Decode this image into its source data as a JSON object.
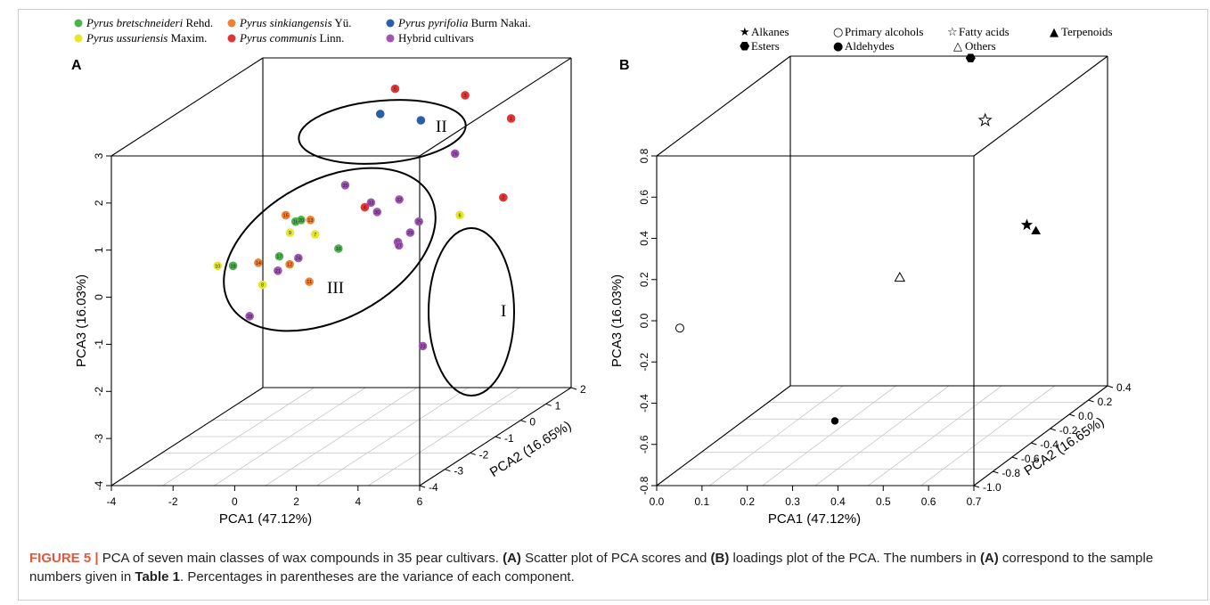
{
  "caption": {
    "figure_label": "FIGURE 5 |",
    "text_1": " PCA of seven main classes of wax compounds in 35 pear cultivars. ",
    "a_ref": "(A)",
    "text_2": " Scatter plot of PCA scores and ",
    "b_ref": "(B)",
    "text_3": " loadings plot of the PCA. The numbers in ",
    "a_ref_2": "(A)",
    "text_4": " correspond to the sample numbers given in ",
    "table_ref": "Table 1",
    "text_5": ". Percentages in parentheses are the variance of each component."
  },
  "chart_data": [
    {
      "panel": "A",
      "type": "scatter",
      "xlabel": "PCA1  (47.12%)",
      "ylabel": "PCA2  (16.65%)",
      "zlabel": "PCA3  (16.03%)",
      "xlim": [
        -4,
        6
      ],
      "ylim": [
        -4,
        2
      ],
      "zlim": [
        -4,
        3
      ],
      "xticks": [
        "-4",
        "-2",
        "0",
        "2",
        "4",
        "6"
      ],
      "yticks": [
        "-4",
        "-3",
        "-2",
        "-1",
        "0",
        "1",
        "2"
      ],
      "zticks": [
        "-4",
        "-3",
        "-2",
        "-1",
        "0",
        "1",
        "2",
        "3"
      ],
      "legend": [
        {
          "italic": "Pyrus bretschneideri",
          "rest": " Rehd.",
          "color": "#4cb24c"
        },
        {
          "italic": "Pyrus sinkiangensis",
          "rest": " Yü.",
          "color": "#f08030"
        },
        {
          "italic": "Pyrus pyrifolia",
          "rest": " Burm Nakai.",
          "color": "#2a5fa8"
        },
        {
          "italic": "Pyrus ussuriensis",
          "rest": " Maxim.",
          "color": "#e6e62a"
        },
        {
          "italic": "Pyrus communis",
          "rest": " Linn.",
          "color": "#e23434"
        },
        {
          "italic": "",
          "rest": "Hybrid cultivars",
          "color": "#a054b4"
        }
      ],
      "group_labels": [
        "I",
        "II",
        "III"
      ],
      "points": [
        {
          "label": "5",
          "group": 4,
          "x": 1.6,
          "y": 0.4,
          "z": 2.9
        },
        {
          "label": "3",
          "group": 4,
          "x": 4.2,
          "y": 0.0,
          "z": 2.9
        },
        {
          "label": "1",
          "group": 4,
          "x": 5.2,
          "y": 0.6,
          "z": 2.2
        },
        {
          "label": "2",
          "group": 4,
          "x": 5.6,
          "y": -0.2,
          "z": 0.8
        },
        {
          "label": "",
          "group": 2,
          "x": 1.2,
          "y": 0.3,
          "z": 2.4
        },
        {
          "label": "",
          "group": 2,
          "x": 2.6,
          "y": 0.2,
          "z": 2.3
        },
        {
          "label": "26",
          "group": 5,
          "x": 4.2,
          "y": -0.4,
          "z": 1.8
        },
        {
          "label": "35",
          "group": 5,
          "x": 0.8,
          "y": -0.6,
          "z": 1.2
        },
        {
          "label": "32",
          "group": 5,
          "x": 2.8,
          "y": -0.9,
          "z": 1.0
        },
        {
          "label": "33",
          "group": 5,
          "x": 1.8,
          "y": -0.8,
          "z": 0.9
        },
        {
          "label": "4",
          "group": 4,
          "x": 1.6,
          "y": -0.8,
          "z": 0.8
        },
        {
          "label": "30",
          "group": 5,
          "x": 2.0,
          "y": -0.8,
          "z": 0.7
        },
        {
          "label": "25",
          "group": 5,
          "x": 3.6,
          "y": -1.1,
          "z": 0.6
        },
        {
          "label": "29",
          "group": 5,
          "x": 3.4,
          "y": -1.2,
          "z": 0.4
        },
        {
          "label": "31",
          "group": 5,
          "x": 3.0,
          "y": -1.2,
          "z": 0.2
        },
        {
          "label": "27",
          "group": 5,
          "x": 3.2,
          "y": -1.4,
          "z": 0.2
        },
        {
          "label": "15",
          "group": 1,
          "x": -0.8,
          "y": -1.0,
          "z": 0.7
        },
        {
          "label": "18",
          "group": 0,
          "x": -0.4,
          "y": -1.1,
          "z": 0.6
        },
        {
          "label": "20",
          "group": 0,
          "x": -0.3,
          "y": -1.0,
          "z": 0.6
        },
        {
          "label": "13",
          "group": 1,
          "x": 0.0,
          "y": -1.0,
          "z": 0.6
        },
        {
          "label": "9",
          "group": 3,
          "x": -0.5,
          "y": -1.2,
          "z": 0.4
        },
        {
          "label": "7",
          "group": 3,
          "x": 0.4,
          "y": -1.3,
          "z": 0.4
        },
        {
          "label": "16",
          "group": 0,
          "x": 1.4,
          "y": -1.6,
          "z": 0.2
        },
        {
          "label": "17",
          "group": 0,
          "x": -0.6,
          "y": -1.5,
          "z": 0.0
        },
        {
          "label": "14",
          "group": 1,
          "x": -1.2,
          "y": -1.6,
          "z": -0.1
        },
        {
          "label": "24",
          "group": 5,
          "x": 0.1,
          "y": -1.6,
          "z": 0.0
        },
        {
          "label": "12",
          "group": 1,
          "x": -0.1,
          "y": -1.7,
          "z": -0.1
        },
        {
          "label": "21",
          "group": 5,
          "x": -0.4,
          "y": -1.8,
          "z": -0.2
        },
        {
          "label": "11",
          "group": 1,
          "x": 0.7,
          "y": -1.9,
          "z": -0.4
        },
        {
          "label": "8",
          "group": 3,
          "x": -0.9,
          "y": -1.8,
          "z": -0.5
        },
        {
          "label": "10",
          "group": 3,
          "x": -2.6,
          "y": -1.5,
          "z": -0.2
        },
        {
          "label": "19",
          "group": 0,
          "x": -2.1,
          "y": -1.5,
          "z": -0.2
        },
        {
          "label": "28",
          "group": 5,
          "x": -1.4,
          "y": -1.7,
          "z": -1.2
        },
        {
          "label": "6",
          "group": 3,
          "x": 4.6,
          "y": -0.7,
          "z": 0.6
        },
        {
          "label": "23",
          "group": 5,
          "x": 4.3,
          "y": -1.8,
          "z": -1.8
        }
      ]
    },
    {
      "panel": "B",
      "type": "scatter",
      "xlabel": "PCA1  (47.12%)",
      "ylabel": "PCA2  (16.65%)",
      "zlabel": "PCA3  (16.03%)",
      "xlim": [
        0.0,
        0.7
      ],
      "ylim": [
        -1.0,
        0.4
      ],
      "zlim": [
        -0.8,
        0.8
      ],
      "xticks": [
        "0.0",
        "0.1",
        "0.2",
        "0.3",
        "0.4",
        "0.5",
        "0.6",
        "0.7"
      ],
      "yticks": [
        "-1.0",
        "-0.8",
        "-0.6",
        "-0.4",
        "-0.2",
        "0.0",
        "0.2",
        "0.4"
      ],
      "zticks": [
        "-0.8",
        "-0.6",
        "-0.4",
        "-0.2",
        "0.0",
        "0.2",
        "0.4",
        "0.6",
        "0.8"
      ],
      "legend": [
        {
          "symbol": "★",
          "label": "Alkanes"
        },
        {
          "symbol": "○",
          "label": "Primary alcohols"
        },
        {
          "symbol": "☆",
          "label": "Fatty acids"
        },
        {
          "symbol": "▲",
          "label": "Terpenoids"
        },
        {
          "symbol": "⬣",
          "label": "Esters"
        },
        {
          "symbol": "●",
          "label": "Aldehydes"
        },
        {
          "symbol": "△",
          "label": "Others"
        }
      ],
      "points": [
        {
          "name": "Alkanes",
          "marker": "star-filled",
          "x": 0.68,
          "y": -0.35,
          "z": 0.24
        },
        {
          "name": "Terpenoids",
          "marker": "triangle-filled",
          "x": 0.7,
          "y": -0.35,
          "z": 0.21
        },
        {
          "name": "Primary alcohols",
          "marker": "circle-open",
          "x": 0.03,
          "y": -0.9,
          "z": -0.07
        },
        {
          "name": "Fatty acids",
          "marker": "star-open",
          "x": 0.51,
          "y": 0.02,
          "z": 0.62
        },
        {
          "name": "Esters",
          "marker": "hexagon-filled",
          "x": 0.44,
          "y": 0.2,
          "z": 0.86
        },
        {
          "name": "Aldehydes",
          "marker": "circle-filled",
          "x": 0.33,
          "y": -0.7,
          "z": -0.59
        },
        {
          "name": "Others",
          "marker": "triangle-open",
          "x": 0.41,
          "y": -0.4,
          "z": 0.0
        }
      ]
    }
  ]
}
